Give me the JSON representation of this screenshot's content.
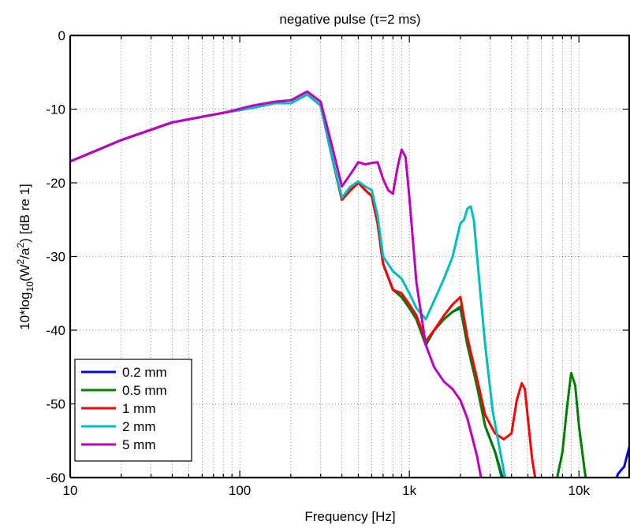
{
  "chart_data": {
    "type": "line",
    "title": "negative pulse (τ=2 ms)",
    "xlabel": "Frequency [Hz]",
    "ylabel_parts": {
      "pre": "10*log",
      "sub": "10",
      "mid": "(W",
      "sup1": "2",
      "slash": "/a",
      "sup2": "2",
      "post": ") [dB re 1]"
    },
    "x_scale": "log",
    "xlim": [
      10,
      20000
    ],
    "ylim": [
      -60,
      0
    ],
    "grid": true,
    "legend_position": "bottom-left",
    "xticks": [
      10,
      100,
      1000,
      10000
    ],
    "xtick_labels": [
      "10",
      "100",
      "1k",
      "10k"
    ],
    "yticks": [
      0,
      -10,
      -20,
      -30,
      -40,
      -50,
      -60
    ],
    "ytick_labels": [
      "0",
      "-10",
      "-20",
      "-30",
      "-40",
      "-50",
      "-60"
    ],
    "series": [
      {
        "name": "0.2 mm",
        "color": "#0000ff",
        "x": [
          10,
          20,
          40,
          80,
          120,
          160,
          200,
          250,
          300,
          350,
          400,
          450,
          500,
          550,
          600,
          650,
          700,
          800,
          900,
          1000,
          1100,
          1250,
          1400,
          1600,
          1800,
          2000,
          2200,
          2500,
          2800,
          3200,
          3600,
          4000,
          15000,
          17000,
          18500,
          20000
        ],
        "y": [
          -17.1,
          -14.2,
          -11.8,
          -10.5,
          -9.8,
          -9.2,
          -9.2,
          -8.0,
          -9.5,
          -16.5,
          -22.3,
          -21.0,
          -20.0,
          -21.0,
          -21.8,
          -25.5,
          -31.0,
          -34.5,
          -35.5,
          -37.0,
          -38.5,
          -42.0,
          -40.0,
          -38.5,
          -37.5,
          -37.0,
          -42.0,
          -47.5,
          -53.0,
          -56.5,
          -60.5,
          -63,
          -63,
          -59.5,
          -58.5,
          -55.5
        ]
      },
      {
        "name": "0.5 mm",
        "color": "#007f00",
        "x": [
          10,
          20,
          40,
          80,
          120,
          160,
          200,
          250,
          300,
          350,
          400,
          450,
          500,
          550,
          600,
          650,
          700,
          800,
          900,
          1000,
          1100,
          1250,
          1400,
          1600,
          1800,
          2000,
          2200,
          2500,
          2800,
          3200,
          3600,
          4000,
          7000,
          8000,
          8500,
          9000,
          9500,
          10000,
          10800,
          11500
        ],
        "y": [
          -17.1,
          -14.2,
          -11.8,
          -10.5,
          -9.8,
          -9.2,
          -9.2,
          -8.0,
          -9.5,
          -16.5,
          -22.3,
          -21.0,
          -20.0,
          -21.0,
          -21.8,
          -25.5,
          -31.0,
          -34.5,
          -35.5,
          -37.0,
          -38.5,
          -42.0,
          -40.0,
          -38.5,
          -37.5,
          -36.8,
          -42.0,
          -47.5,
          -53.0,
          -56.5,
          -61.0,
          -63,
          -63,
          -56.5,
          -50.5,
          -45.8,
          -47.5,
          -53.0,
          -59.0,
          -63
        ]
      },
      {
        "name": "1 mm",
        "color": "#ff0000",
        "x": [
          10,
          20,
          40,
          80,
          120,
          160,
          200,
          250,
          300,
          350,
          400,
          450,
          500,
          550,
          600,
          650,
          700,
          800,
          900,
          1000,
          1100,
          1250,
          1400,
          1600,
          1800,
          2000,
          2200,
          2500,
          2800,
          3200,
          3600,
          4000,
          4300,
          4600,
          4800,
          5000,
          5300,
          5700,
          6000
        ],
        "y": [
          -17.1,
          -14.2,
          -11.8,
          -10.5,
          -9.8,
          -9.2,
          -9.2,
          -8.0,
          -9.5,
          -16.5,
          -22.3,
          -21.0,
          -20.0,
          -21.0,
          -21.8,
          -25.5,
          -31.0,
          -34.5,
          -35.0,
          -36.5,
          -38.0,
          -41.5,
          -40.0,
          -38.0,
          -36.5,
          -35.5,
          -41.0,
          -46.5,
          -51.5,
          -54.0,
          -54.8,
          -54.0,
          -49.5,
          -47.2,
          -48.0,
          -52.0,
          -57.5,
          -62.0,
          -63
        ]
      },
      {
        "name": "2 mm",
        "color": "#00bfbf",
        "x": [
          10,
          20,
          40,
          80,
          120,
          160,
          200,
          250,
          300,
          350,
          400,
          450,
          500,
          550,
          600,
          650,
          700,
          800,
          900,
          1000,
          1100,
          1250,
          1400,
          1600,
          1800,
          2000,
          2100,
          2200,
          2300,
          2400,
          2600,
          2800,
          3100,
          3400,
          3700,
          4000
        ],
        "y": [
          -17.1,
          -14.2,
          -11.8,
          -10.5,
          -9.8,
          -9.2,
          -9.2,
          -8.0,
          -9.5,
          -16.5,
          -22.0,
          -20.5,
          -19.8,
          -20.5,
          -21.0,
          -24.5,
          -30.0,
          -32.0,
          -33.0,
          -35.0,
          -37.0,
          -38.5,
          -36.0,
          -33.0,
          -30.0,
          -25.5,
          -25.0,
          -23.5,
          -23.2,
          -25.0,
          -34.0,
          -42.0,
          -51.0,
          -56.0,
          -60.5,
          -63
        ]
      },
      {
        "name": "5 mm",
        "color": "#bf00bf",
        "x": [
          10,
          20,
          40,
          80,
          120,
          160,
          200,
          250,
          300,
          350,
          400,
          450,
          500,
          550,
          600,
          650,
          700,
          750,
          800,
          850,
          900,
          950,
          1000,
          1100,
          1250,
          1400,
          1600,
          1800,
          2000,
          2200,
          2500,
          2700,
          2900,
          3100
        ],
        "y": [
          -17.1,
          -14.2,
          -11.8,
          -10.5,
          -9.5,
          -9.0,
          -8.8,
          -7.6,
          -9.0,
          -15.0,
          -20.5,
          -18.8,
          -17.2,
          -17.5,
          -17.3,
          -17.2,
          -19.5,
          -21.0,
          -21.5,
          -18.0,
          -15.5,
          -16.5,
          -22.0,
          -33.5,
          -42.0,
          -45.0,
          -47.0,
          -48.0,
          -49.5,
          -52.0,
          -57.0,
          -61.0,
          -63,
          -63
        ]
      }
    ]
  }
}
